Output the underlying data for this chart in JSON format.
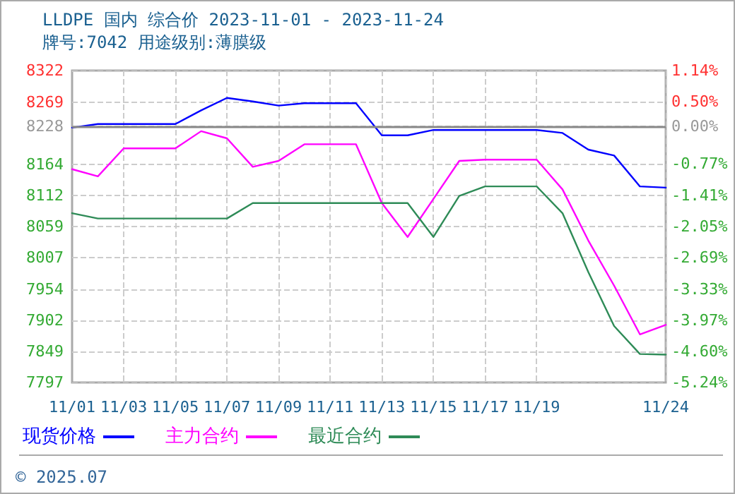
{
  "chart_data": {
    "type": "line",
    "title": "LLDPE 国内 综合价 2023-11-01 - 2023-11-24",
    "subtitle": "牌号:7042 用途级别:薄膜级",
    "categories": [
      "11/01",
      null,
      "11/03",
      null,
      "11/05",
      null,
      "11/07",
      null,
      "11/09",
      null,
      "11/11",
      null,
      "11/13",
      null,
      "11/15",
      null,
      "11/17",
      null,
      "11/19",
      null,
      null,
      null,
      null,
      "11/24"
    ],
    "series": [
      {
        "name": "现货价格",
        "color": "#0000ff",
        "values": [
          8226,
          8232,
          8232,
          8232,
          8232,
          8255,
          8276,
          8270,
          8263,
          8267,
          8267,
          8267,
          8213,
          8213,
          8222,
          8222,
          8222,
          8222,
          8222,
          8217,
          8189,
          8179,
          8127,
          8125
        ]
      },
      {
        "name": "主力合约",
        "color": "#ff00ff",
        "values": [
          8156,
          8144,
          8191,
          8191,
          8191,
          8220,
          8208,
          8160,
          8170,
          8198,
          8198,
          8198,
          8099,
          8042,
          8106,
          8170,
          8172,
          8172,
          8172,
          8122,
          8036,
          7960,
          7878,
          7894
        ]
      },
      {
        "name": "最近合约",
        "color": "#2e8b57",
        "values": [
          8082,
          8073,
          8073,
          8073,
          8073,
          8073,
          8073,
          8099,
          8099,
          8099,
          8099,
          8099,
          8099,
          8099,
          8042,
          8111,
          8127,
          8127,
          8127,
          8082,
          7983,
          7892,
          7845,
          7844
        ]
      }
    ],
    "ylim": [
      7797,
      8322
    ],
    "yticks": [
      7797,
      7849,
      7902,
      7954,
      8007,
      8059,
      8112,
      8164,
      8228,
      8269,
      8322
    ],
    "y2lim": [
      -5.24,
      1.14
    ],
    "y2ticks": [
      {
        "value": -5.24,
        "label": "-5.24%"
      },
      {
        "value": -4.6,
        "label": "-4.60%"
      },
      {
        "value": -3.97,
        "label": "-3.97%"
      },
      {
        "value": -3.33,
        "label": "-3.33%"
      },
      {
        "value": -2.69,
        "label": "-2.69%"
      },
      {
        "value": -2.05,
        "label": "-2.05%"
      },
      {
        "value": -1.41,
        "label": "-1.41%"
      },
      {
        "value": -0.77,
        "label": "-0.77%"
      },
      {
        "value": 0,
        "label": "0.00%"
      },
      {
        "value": 0.5,
        "label": "0.50%"
      },
      {
        "value": 1.14,
        "label": "1.14%"
      }
    ],
    "ref_lines": [
      {
        "axis": "y",
        "value": 8228,
        "color": "#888888"
      }
    ],
    "annotations": [
      "© 2025.07"
    ],
    "grid": true,
    "legend": "bottom left",
    "marker": "none",
    "line_style": "solid"
  }
}
